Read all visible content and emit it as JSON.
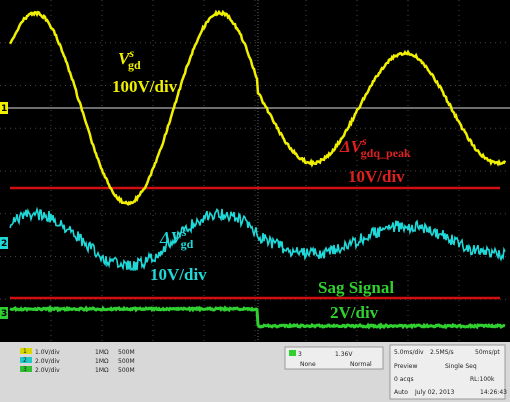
{
  "traces": [
    {
      "label": {
        "main": "V",
        "sup": "s",
        "sub": "gd"
      },
      "scale": "100V/div"
    },
    {
      "label": {
        "main": "ΔV",
        "sup": "s",
        "sub": "gdq_peak"
      },
      "scale": "10V/div"
    },
    {
      "label": {
        "main": "ΔV",
        "sup": "s",
        "sub": "gd"
      },
      "scale": "10V/div"
    },
    {
      "label": {
        "main": "Sag Signal"
      },
      "scale": "2V/div"
    }
  ],
  "channels": [
    {
      "id": "1",
      "scale": "1.0V/div",
      "imp": "1MΩ",
      "bw": "500M"
    },
    {
      "id": "2",
      "scale": "2.0V/div",
      "imp": "1MΩ",
      "bw": "500M"
    },
    {
      "id": "3",
      "scale": "2.0V/div",
      "imp": "1MΩ",
      "bw": "500M"
    }
  ],
  "trigger": {
    "ch": "3",
    "level": "1.36V",
    "coupling": "None",
    "mode": "Normal"
  },
  "acq": {
    "horiz": "5.0ms/div",
    "rate": "2.5MS/s",
    "pt": "50ms/pt",
    "state": "Preview",
    "seq": "Single Seq",
    "acqs": "0 acqs",
    "rl": "RL:100k",
    "auto": "Auto",
    "date": "July 02, 2013",
    "time": "14:26:43"
  }
}
